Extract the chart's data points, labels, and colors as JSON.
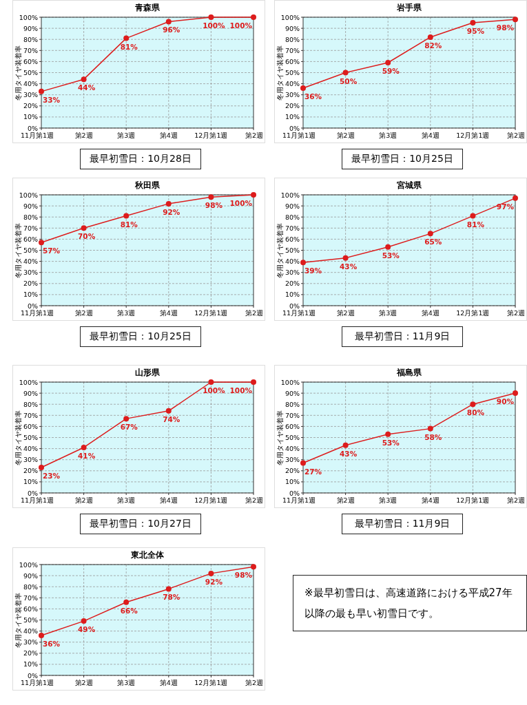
{
  "chart_data": [
    {
      "type": "line",
      "title": "青森県",
      "ylabel": "冬用タイヤ装着率",
      "categories": [
        "11月第1週",
        "第2週",
        "第3週",
        "第4週",
        "12月第1週",
        "第2週"
      ],
      "series": [
        {
          "color": "#dd1c1c",
          "values": [
            33,
            44,
            81,
            96,
            100,
            100
          ],
          "value_labels": [
            "33%",
            "44%",
            "81%",
            "96%",
            "100%",
            "100%"
          ]
        }
      ],
      "ylim": [
        0,
        100
      ],
      "yticks": [
        {
          "value": 0,
          "label": "0%"
        },
        {
          "value": 10,
          "label": "10%"
        },
        {
          "value": 20,
          "label": "20%"
        },
        {
          "value": 30,
          "label": "30%"
        },
        {
          "value": 40,
          "label": "40%"
        },
        {
          "value": 50,
          "label": "50%"
        },
        {
          "value": 60,
          "label": "60%"
        },
        {
          "value": 70,
          "label": "70%"
        },
        {
          "value": 80,
          "label": "80%"
        },
        {
          "value": 90,
          "label": "90%"
        },
        {
          "value": 100,
          "label": "100%"
        }
      ],
      "grid": true,
      "marker": "circle",
      "annotations": [
        "最早初雪日：10月28日"
      ]
    },
    {
      "type": "line",
      "title": "岩手県",
      "ylabel": "冬用タイヤ装着率",
      "categories": [
        "11月第1週",
        "第2週",
        "第3週",
        "第4週",
        "12月第1週",
        "第2週"
      ],
      "series": [
        {
          "color": "#dd1c1c",
          "values": [
            36,
            50,
            59,
            82,
            95,
            98
          ],
          "value_labels": [
            "36%",
            "50%",
            "59%",
            "82%",
            "95%",
            "98%"
          ]
        }
      ],
      "ylim": [
        0,
        100
      ],
      "yticks": [
        {
          "value": 0,
          "label": "0%"
        },
        {
          "value": 10,
          "label": "10%"
        },
        {
          "value": 20,
          "label": "20%"
        },
        {
          "value": 30,
          "label": "30%"
        },
        {
          "value": 40,
          "label": "40%"
        },
        {
          "value": 50,
          "label": "50%"
        },
        {
          "value": 60,
          "label": "60%"
        },
        {
          "value": 70,
          "label": "70%"
        },
        {
          "value": 80,
          "label": "80%"
        },
        {
          "value": 90,
          "label": "90%"
        },
        {
          "value": 100,
          "label": "100%"
        }
      ],
      "grid": true,
      "marker": "circle",
      "annotations": [
        "最早初雪日：10月25日"
      ]
    },
    {
      "type": "line",
      "title": "秋田県",
      "ylabel": "冬用タイヤ装着率",
      "categories": [
        "11月第1週",
        "第2週",
        "第3週",
        "第4週",
        "12月第1週",
        "第2週"
      ],
      "series": [
        {
          "color": "#dd1c1c",
          "values": [
            57,
            70,
            81,
            92,
            98,
            100
          ],
          "value_labels": [
            "57%",
            "70%",
            "81%",
            "92%",
            "98%",
            "100%"
          ]
        }
      ],
      "ylim": [
        0,
        100
      ],
      "yticks": [
        {
          "value": 0,
          "label": "0%"
        },
        {
          "value": 10,
          "label": "10%"
        },
        {
          "value": 20,
          "label": "20%"
        },
        {
          "value": 30,
          "label": "30%"
        },
        {
          "value": 40,
          "label": "40%"
        },
        {
          "value": 50,
          "label": "50%"
        },
        {
          "value": 60,
          "label": "60%"
        },
        {
          "value": 70,
          "label": "70%"
        },
        {
          "value": 80,
          "label": "80%"
        },
        {
          "value": 90,
          "label": "90%"
        },
        {
          "value": 100,
          "label": "100%"
        }
      ],
      "grid": true,
      "marker": "circle",
      "annotations": [
        "最早初雪日：10月25日"
      ]
    },
    {
      "type": "line",
      "title": "宮城県",
      "ylabel": "冬用タイヤ装着率",
      "categories": [
        "11月第1週",
        "第2週",
        "第3週",
        "第4週",
        "12月第1週",
        "第2週"
      ],
      "series": [
        {
          "color": "#dd1c1c",
          "values": [
            39,
            43,
            53,
            65,
            81,
            97
          ],
          "value_labels": [
            "39%",
            "43%",
            "53%",
            "65%",
            "81%",
            "97%"
          ]
        }
      ],
      "ylim": [
        0,
        100
      ],
      "yticks": [
        {
          "value": 0,
          "label": "0%"
        },
        {
          "value": 10,
          "label": "10%"
        },
        {
          "value": 20,
          "label": "20%"
        },
        {
          "value": 30,
          "label": "30%"
        },
        {
          "value": 40,
          "label": "40%"
        },
        {
          "value": 50,
          "label": "50%"
        },
        {
          "value": 60,
          "label": "60%"
        },
        {
          "value": 70,
          "label": "70%"
        },
        {
          "value": 80,
          "label": "80%"
        },
        {
          "value": 90,
          "label": "90%"
        },
        {
          "value": 100,
          "label": "100%"
        }
      ],
      "grid": true,
      "marker": "circle",
      "annotations": [
        "最早初雪日：11月9日"
      ]
    },
    {
      "type": "line",
      "title": "山形県",
      "ylabel": "冬用タイヤ装着率",
      "categories": [
        "11月第1週",
        "第2週",
        "第3週",
        "第4週",
        "12月第1週",
        "第2週"
      ],
      "series": [
        {
          "color": "#dd1c1c",
          "values": [
            23,
            41,
            67,
            74,
            100,
            100
          ],
          "value_labels": [
            "23%",
            "41%",
            "67%",
            "74%",
            "100%",
            "100%"
          ]
        }
      ],
      "ylim": [
        0,
        100
      ],
      "yticks": [
        {
          "value": 0,
          "label": "0%"
        },
        {
          "value": 10,
          "label": "10%"
        },
        {
          "value": 20,
          "label": "20%"
        },
        {
          "value": 30,
          "label": "30%"
        },
        {
          "value": 40,
          "label": "40%"
        },
        {
          "value": 50,
          "label": "50%"
        },
        {
          "value": 60,
          "label": "60%"
        },
        {
          "value": 70,
          "label": "70%"
        },
        {
          "value": 80,
          "label": "80%"
        },
        {
          "value": 90,
          "label": "90%"
        },
        {
          "value": 100,
          "label": "100%"
        }
      ],
      "grid": true,
      "marker": "circle",
      "annotations": [
        "最早初雪日：10月27日"
      ]
    },
    {
      "type": "line",
      "title": "福島県",
      "ylabel": "冬用タイヤ装着率",
      "categories": [
        "11月第1週",
        "第2週",
        "第3週",
        "第4週",
        "12月第1週",
        "第2週"
      ],
      "series": [
        {
          "color": "#dd1c1c",
          "values": [
            27,
            43,
            53,
            58,
            80,
            90
          ],
          "value_labels": [
            "27%",
            "43%",
            "53%",
            "58%",
            "80%",
            "90%"
          ]
        }
      ],
      "ylim": [
        0,
        100
      ],
      "yticks": [
        {
          "value": 0,
          "label": "0%"
        },
        {
          "value": 10,
          "label": "10%"
        },
        {
          "value": 20,
          "label": "20%"
        },
        {
          "value": 30,
          "label": "30%"
        },
        {
          "value": 40,
          "label": "40%"
        },
        {
          "value": 50,
          "label": "50%"
        },
        {
          "value": 60,
          "label": "60%"
        },
        {
          "value": 70,
          "label": "70%"
        },
        {
          "value": 80,
          "label": "80%"
        },
        {
          "value": 90,
          "label": "90%"
        },
        {
          "value": 100,
          "label": "100%"
        }
      ],
      "grid": true,
      "marker": "circle",
      "annotations": [
        "最早初雪日：11月9日"
      ]
    },
    {
      "type": "line",
      "title": "東北全体",
      "ylabel": "冬用タイヤ装着率",
      "categories": [
        "11月第1週",
        "第2週",
        "第3週",
        "第4週",
        "12月第1週",
        "第2週"
      ],
      "series": [
        {
          "color": "#dd1c1c",
          "values": [
            36,
            49,
            66,
            78,
            92,
            98
          ],
          "value_labels": [
            "36%",
            "49%",
            "66%",
            "78%",
            "92%",
            "98%"
          ]
        }
      ],
      "ylim": [
        0,
        100
      ],
      "yticks": [
        {
          "value": 0,
          "label": "0%"
        },
        {
          "value": 10,
          "label": "10%"
        },
        {
          "value": 20,
          "label": "20%"
        },
        {
          "value": 30,
          "label": "30%"
        },
        {
          "value": 40,
          "label": "40%"
        },
        {
          "value": 50,
          "label": "50%"
        },
        {
          "value": 60,
          "label": "60%"
        },
        {
          "value": 70,
          "label": "70%"
        },
        {
          "value": 80,
          "label": "80%"
        },
        {
          "value": 90,
          "label": "90%"
        },
        {
          "value": 100,
          "label": "100%"
        }
      ],
      "grid": true,
      "marker": "circle"
    },
    {
      "type": "other",
      "annotations": [
        "※最早初雪日は、高速道路における平成27年以降の最も早い初雪日です。"
      ]
    }
  ]
}
